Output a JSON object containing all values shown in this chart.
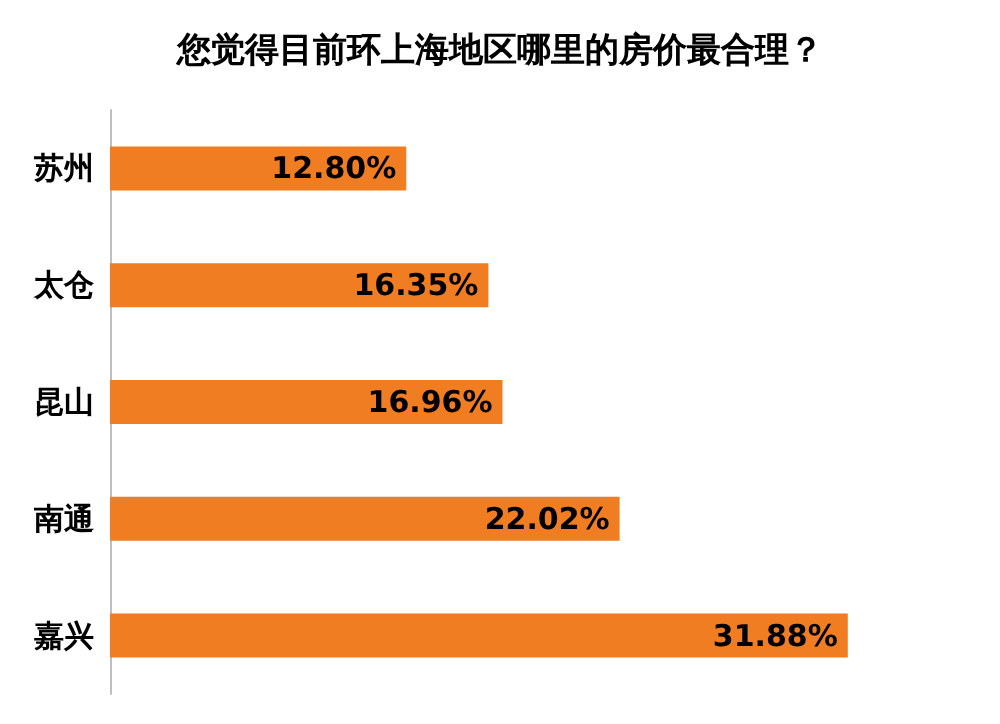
{
  "chart_data": {
    "type": "bar",
    "title": "您觉得目前环上海地区哪里的房价最合理？",
    "orientation": "horizontal",
    "categories": [
      "苏州",
      "太仓",
      "昆山",
      "南通",
      "嘉兴"
    ],
    "values": [
      12.8,
      16.35,
      16.96,
      22.02,
      31.88
    ],
    "value_labels": [
      "12.80%",
      "16.35%",
      "16.96%",
      "22.02%",
      "31.88%"
    ],
    "color": "#f07d22",
    "tick_labels": "y"
  }
}
